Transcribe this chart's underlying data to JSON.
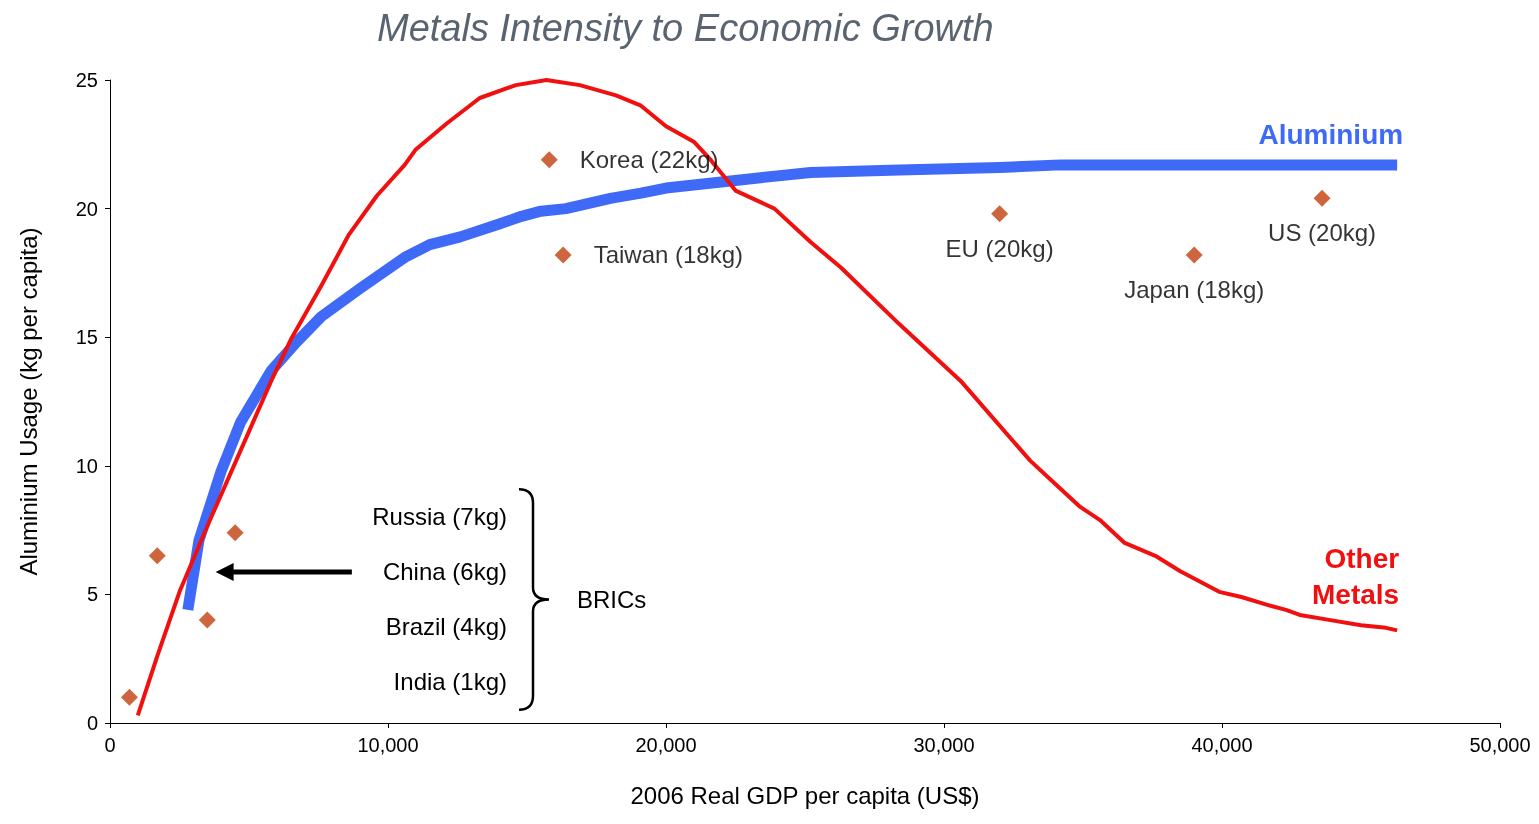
{
  "chart_data": {
    "type": "line",
    "title": "Metals Intensity to Economic Growth",
    "xlabel": "2006 Real GDP per capita (US$)",
    "ylabel": "Aluminium Usage (kg per capita)",
    "xlim": [
      0,
      50000
    ],
    "xticks": [
      0,
      {
        "value": 10000,
        "label": "10,000"
      },
      {
        "value": 20000,
        "label": "20,000"
      },
      {
        "value": 30000,
        "label": "30,000"
      },
      {
        "value": 40000,
        "label": "40,000"
      },
      {
        "value": 50000,
        "label": "50,000"
      }
    ],
    "ylim": [
      0,
      25
    ],
    "yticks": [
      0,
      5,
      10,
      15,
      20,
      25
    ],
    "grid": false,
    "legend": false,
    "annotations": [
      "Russia (7kg)",
      "China (6kg)",
      "Brazil (4kg)",
      "India (1kg)",
      "BRICs"
    ],
    "series": [
      {
        "name": "Aluminium",
        "color": "#3f6af8",
        "x": [
          2800,
          3200,
          4000,
          4700,
          5800,
          6700,
          7600,
          9000,
          10600,
          11500,
          12600,
          14000,
          14800,
          15500,
          16400,
          18000,
          19100,
          20000,
          23400,
          25200,
          28400,
          32000,
          34200,
          46300
        ],
        "values": [
          4.4,
          7.1,
          9.8,
          11.7,
          13.7,
          14.8,
          15.8,
          16.9,
          18.1,
          18.6,
          18.9,
          19.4,
          19.7,
          19.9,
          20.0,
          20.4,
          20.6,
          20.8,
          21.2,
          21.4,
          21.5,
          21.6,
          21.7,
          21.7
        ]
      },
      {
        "name": "Other Metals",
        "color": "#f01010",
        "x": [
          1000,
          1700,
          2500,
          3600,
          4700,
          5800,
          6500,
          7600,
          8600,
          9600,
          10600,
          11000,
          12100,
          13300,
          14600,
          15700,
          16900,
          18200,
          19100,
          20000,
          21000,
          21600,
          22500,
          23900,
          25200,
          26300,
          28400,
          30600,
          33100,
          33800,
          34900,
          35600,
          36500,
          37600,
          38500,
          39900,
          40700,
          41600,
          42300,
          42800,
          43900,
          45000,
          45900,
          46300
        ],
        "values": [
          0.3,
          2.6,
          5.1,
          7.9,
          10.6,
          13.3,
          14.9,
          17.0,
          19.0,
          20.5,
          21.7,
          22.3,
          23.3,
          24.3,
          24.8,
          25.0,
          24.8,
          24.4,
          24.0,
          23.2,
          22.6,
          21.9,
          20.7,
          20.0,
          18.7,
          17.7,
          15.5,
          13.3,
          10.2,
          9.5,
          8.4,
          7.9,
          7.0,
          6.5,
          5.9,
          5.1,
          4.9,
          4.6,
          4.4,
          4.2,
          4.0,
          3.8,
          3.7,
          3.6
        ]
      },
      {
        "type": "scatter",
        "marker": "diamond",
        "color": "#c0400c",
        "x": [
          700,
          1700,
          3500,
          4500,
          15800,
          16300,
          32000,
          39000,
          43600
        ],
        "values": [
          1.0,
          6.5,
          4.0,
          7.4,
          21.9,
          18.2,
          19.8,
          18.2,
          20.4
        ],
        "value_labels": [
          null,
          null,
          null,
          null,
          "Korea (22kg)",
          "Taiwan (18kg)",
          "EU (20kg)",
          "Japan (18kg)",
          "US (20kg)"
        ]
      }
    ]
  }
}
